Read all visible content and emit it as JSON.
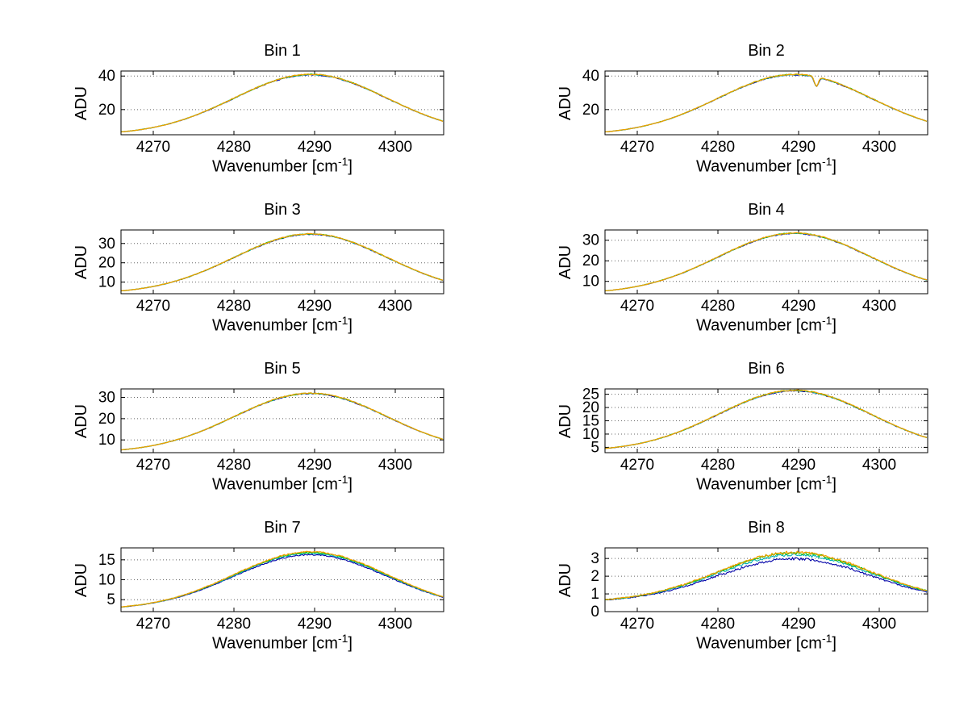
{
  "figure": {
    "background": "#ffffff"
  },
  "labels": {
    "ylabel": "ADU",
    "xlabel_pre": "Wavenumber [cm",
    "xlabel_sup": "-1",
    "xlabel_post": "]"
  },
  "chart_data": [
    {
      "type": "line",
      "title": "Bin 1",
      "xlim": [
        4266,
        4306
      ],
      "xticks": [
        4270,
        4280,
        4290,
        4300
      ],
      "xtick_labels": [
        "4270",
        "4280",
        "4290",
        "4300"
      ],
      "ylim": [
        5,
        43
      ],
      "yticks": [
        20,
        40
      ],
      "ytick_labels": [
        "20",
        "40"
      ],
      "grid": "dotted-horizontal",
      "legend": "none",
      "profile": {
        "center": 4289.5,
        "sigma": 9.5,
        "baseline": 5,
        "amplitude": 36,
        "peak": 41
      },
      "noise": 0.007,
      "dip": null,
      "series": [
        {
          "name": "series-1-blue",
          "color": "#0000a8",
          "scale": 0.992
        },
        {
          "name": "series-2-cyan",
          "color": "#00b0b0",
          "scale": 0.996
        },
        {
          "name": "series-3-green",
          "color": "#00c000",
          "scale": 0.999
        },
        {
          "name": "series-4-yellow",
          "color": "#f0a000",
          "scale": 1.0
        }
      ],
      "sample_x": [
        4270,
        4275,
        4280,
        4285,
        4290,
        4295,
        4300,
        4305
      ],
      "sample_y_top": [
        9.4,
        16.2,
        26.8,
        37.2,
        40.9,
        35.4,
        24.5,
        14.5
      ]
    },
    {
      "type": "line",
      "title": "Bin 2",
      "xlim": [
        4266,
        4306
      ],
      "xticks": [
        4270,
        4280,
        4290,
        4300
      ],
      "xtick_labels": [
        "4270",
        "4280",
        "4290",
        "4300"
      ],
      "ylim": [
        5,
        43
      ],
      "yticks": [
        20,
        40
      ],
      "ytick_labels": [
        "20",
        "40"
      ],
      "grid": "dotted-horizontal",
      "legend": "none",
      "profile": {
        "center": 4289.5,
        "sigma": 9.5,
        "baseline": 5,
        "amplitude": 36,
        "peak": 41
      },
      "noise": 0.007,
      "dip": {
        "center": 4292.2,
        "depth": 5.5,
        "width": 0.25
      },
      "series": [
        {
          "name": "series-1-blue",
          "color": "#0000a8",
          "scale": 0.992
        },
        {
          "name": "series-2-cyan",
          "color": "#00b0b0",
          "scale": 0.996
        },
        {
          "name": "series-3-green",
          "color": "#00c000",
          "scale": 0.999
        },
        {
          "name": "series-4-yellow",
          "color": "#f0a000",
          "scale": 1.0
        }
      ],
      "sample_x": [
        4270,
        4275,
        4280,
        4285,
        4290,
        4295,
        4300,
        4305
      ],
      "sample_y_top": [
        9.4,
        16.2,
        26.8,
        37.2,
        40.9,
        35.4,
        24.5,
        14.5
      ]
    },
    {
      "type": "line",
      "title": "Bin 3",
      "xlim": [
        4266,
        4306
      ],
      "xticks": [
        4270,
        4280,
        4290,
        4300
      ],
      "xtick_labels": [
        "4270",
        "4280",
        "4290",
        "4300"
      ],
      "ylim": [
        4,
        37
      ],
      "yticks": [
        10,
        20,
        30
      ],
      "ytick_labels": [
        "10",
        "20",
        "30"
      ],
      "grid": "dotted-horizontal",
      "legend": "none",
      "profile": {
        "center": 4289.5,
        "sigma": 9.5,
        "baseline": 4,
        "amplitude": 31,
        "peak": 35
      },
      "noise": 0.007,
      "dip": null,
      "series": [
        {
          "name": "series-1-blue",
          "color": "#0000a8",
          "scale": 0.992
        },
        {
          "name": "series-2-cyan",
          "color": "#00b0b0",
          "scale": 0.996
        },
        {
          "name": "series-3-green",
          "color": "#00c000",
          "scale": 0.999
        },
        {
          "name": "series-4-yellow",
          "color": "#f0a000",
          "scale": 1.0
        }
      ],
      "sample_x": [
        4270,
        4275,
        4280,
        4285,
        4290,
        4295,
        4300,
        4305
      ],
      "sample_y_top": [
        7.8,
        13.7,
        22.8,
        31.7,
        35.0,
        30.2,
        20.8,
        12.2
      ]
    },
    {
      "type": "line",
      "title": "Bin 4",
      "xlim": [
        4266,
        4306
      ],
      "xticks": [
        4270,
        4280,
        4290,
        4300
      ],
      "xtick_labels": [
        "4270",
        "4280",
        "4290",
        "4300"
      ],
      "ylim": [
        4,
        35
      ],
      "yticks": [
        10,
        20,
        30
      ],
      "ytick_labels": [
        "10",
        "20",
        "30"
      ],
      "grid": "dotted-horizontal",
      "legend": "none",
      "profile": {
        "center": 4289.5,
        "sigma": 9.5,
        "baseline": 4,
        "amplitude": 29.5,
        "peak": 33.5
      },
      "noise": 0.007,
      "dip": null,
      "series": [
        {
          "name": "series-1-blue",
          "color": "#0000a8",
          "scale": 0.992
        },
        {
          "name": "series-2-cyan",
          "color": "#00b0b0",
          "scale": 0.996
        },
        {
          "name": "series-3-green",
          "color": "#00c000",
          "scale": 0.999
        },
        {
          "name": "series-4-yellow",
          "color": "#f0a000",
          "scale": 1.0
        }
      ],
      "sample_x": [
        4270,
        4275,
        4280,
        4285,
        4290,
        4295,
        4300,
        4305
      ],
      "sample_y_top": [
        7.6,
        13.2,
        21.9,
        30.4,
        33.5,
        28.9,
        20.0,
        11.8
      ]
    },
    {
      "type": "line",
      "title": "Bin 5",
      "xlim": [
        4266,
        4306
      ],
      "xticks": [
        4270,
        4280,
        4290,
        4300
      ],
      "xtick_labels": [
        "4270",
        "4280",
        "4290",
        "4300"
      ],
      "ylim": [
        4,
        34
      ],
      "yticks": [
        10,
        20,
        30
      ],
      "ytick_labels": [
        "10",
        "20",
        "30"
      ],
      "grid": "dotted-horizontal",
      "legend": "none",
      "profile": {
        "center": 4289.5,
        "sigma": 9.5,
        "baseline": 4,
        "amplitude": 28,
        "peak": 32
      },
      "noise": 0.007,
      "dip": null,
      "series": [
        {
          "name": "series-1-blue",
          "color": "#0000a8",
          "scale": 0.992
        },
        {
          "name": "series-2-cyan",
          "color": "#00b0b0",
          "scale": 0.996
        },
        {
          "name": "series-3-green",
          "color": "#00c000",
          "scale": 0.999
        },
        {
          "name": "series-4-yellow",
          "color": "#f0a000",
          "scale": 1.0
        }
      ],
      "sample_x": [
        4270,
        4275,
        4280,
        4285,
        4290,
        4295,
        4300,
        4305
      ],
      "sample_y_top": [
        7.4,
        12.7,
        21.0,
        29.0,
        32.0,
        27.7,
        19.2,
        11.4
      ]
    },
    {
      "type": "line",
      "title": "Bin 6",
      "xlim": [
        4266,
        4306
      ],
      "xticks": [
        4270,
        4280,
        4290,
        4300
      ],
      "xtick_labels": [
        "4270",
        "4280",
        "4290",
        "4300"
      ],
      "ylim": [
        3,
        27
      ],
      "yticks": [
        5,
        10,
        15,
        20,
        25
      ],
      "ytick_labels": [
        "5",
        "10",
        "15",
        "20",
        "25"
      ],
      "grid": "dotted-horizontal",
      "legend": "none",
      "profile": {
        "center": 4289.5,
        "sigma": 9.5,
        "baseline": 3.5,
        "amplitude": 23,
        "peak": 26.5
      },
      "noise": 0.008,
      "dip": null,
      "series": [
        {
          "name": "series-1-blue",
          "color": "#0000a8",
          "scale": 0.99
        },
        {
          "name": "series-2-cyan",
          "color": "#00b0b0",
          "scale": 0.995
        },
        {
          "name": "series-3-green",
          "color": "#00c000",
          "scale": 0.999
        },
        {
          "name": "series-4-yellow",
          "color": "#f0a000",
          "scale": 1.0
        }
      ],
      "sample_x": [
        4270,
        4275,
        4280,
        4285,
        4290,
        4295,
        4300,
        4305
      ],
      "sample_y_top": [
        6.3,
        10.7,
        17.4,
        24.1,
        26.5,
        23.0,
        16.0,
        9.6
      ]
    },
    {
      "type": "line",
      "title": "Bin 7",
      "xlim": [
        4266,
        4306
      ],
      "xticks": [
        4270,
        4280,
        4290,
        4300
      ],
      "xtick_labels": [
        "4270",
        "4280",
        "4290",
        "4300"
      ],
      "ylim": [
        2,
        18
      ],
      "yticks": [
        5,
        10,
        15
      ],
      "ytick_labels": [
        "5",
        "10",
        "15"
      ],
      "grid": "dotted-horizontal",
      "legend": "none",
      "profile": {
        "center": 4289.5,
        "sigma": 9.5,
        "baseline": 2.5,
        "amplitude": 14.5,
        "peak": 17
      },
      "noise": 0.009,
      "dip": null,
      "series": [
        {
          "name": "series-1-blue",
          "color": "#0000a8",
          "scale": 0.95
        },
        {
          "name": "series-2-cyan",
          "color": "#00b0b0",
          "scale": 0.975
        },
        {
          "name": "series-3-green",
          "color": "#00c000",
          "scale": 0.99
        },
        {
          "name": "series-4-yellow",
          "color": "#f0a000",
          "scale": 1.0
        }
      ],
      "sample_x": [
        4270,
        4275,
        4280,
        4285,
        4290,
        4295,
        4300,
        4305
      ],
      "sample_y_top": [
        4.3,
        7.0,
        11.3,
        15.5,
        17.0,
        14.8,
        10.4,
        6.3
      ]
    },
    {
      "type": "line",
      "title": "Bin 8",
      "xlim": [
        4266,
        4306
      ],
      "xticks": [
        4270,
        4280,
        4290,
        4300
      ],
      "xtick_labels": [
        "4270",
        "4280",
        "4290",
        "4300"
      ],
      "ylim": [
        0,
        3.6
      ],
      "yticks": [
        0,
        1,
        2,
        3
      ],
      "ytick_labels": [
        "0",
        "1",
        "2",
        "3"
      ],
      "grid": "dotted-horizontal",
      "legend": "none",
      "profile": {
        "center": 4289.5,
        "sigma": 9.5,
        "baseline": 0.55,
        "amplitude": 2.8,
        "peak": 3.35
      },
      "noise": 0.022,
      "dip": null,
      "series": [
        {
          "name": "series-1-blue",
          "color": "#0000a8",
          "scale": 0.87
        },
        {
          "name": "series-2-cyan",
          "color": "#00b0b0",
          "scale": 0.95
        },
        {
          "name": "series-3-green",
          "color": "#00c000",
          "scale": 0.985
        },
        {
          "name": "series-4-yellow",
          "color": "#f0a000",
          "scale": 1.0
        }
      ],
      "sample_x": [
        4270,
        4275,
        4280,
        4285,
        4290,
        4295,
        4300,
        4305
      ],
      "sample_y_top": [
        0.89,
        1.42,
        2.25,
        3.05,
        3.35,
        2.92,
        2.07,
        1.29
      ]
    }
  ]
}
